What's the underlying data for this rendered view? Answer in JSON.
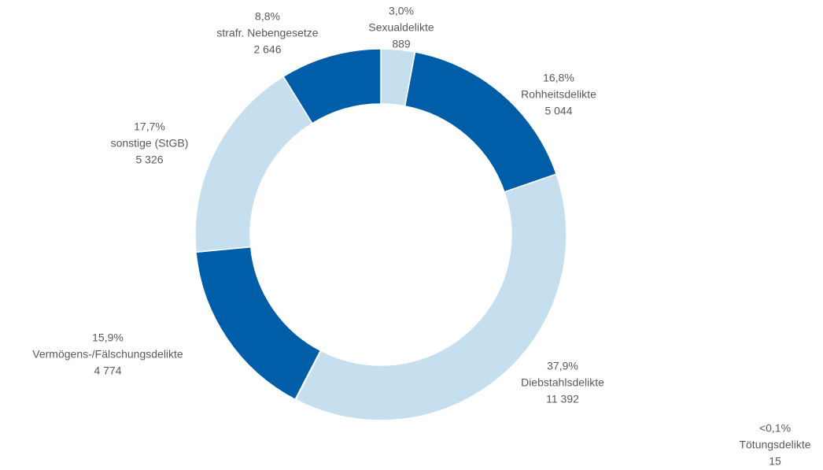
{
  "chart_data": {
    "type": "pie",
    "donut": true,
    "categories": [
      "Sexualdelikte",
      "Rohheitsdelikte",
      "Diebstahlsdelikte",
      "Tötungsdelikte",
      "Vermögens-/Fälschungsdelikte",
      "sonstige (StGB)",
      "strafr. Nebengesetze"
    ],
    "values": [
      889,
      5044,
      11392,
      15,
      4774,
      5326,
      2646
    ],
    "value_labels": [
      "889",
      "5 044",
      "11 392",
      "15",
      "4 774",
      "5 326",
      "2 646"
    ],
    "share_labels": [
      "3,0%",
      "16,8%",
      "37,9%",
      "<0,1%",
      "15,9%",
      "17,7%",
      "8,8%"
    ],
    "colors": [
      "#c6dfee",
      "#005ea8",
      "#c6dfee",
      "#005ea8",
      "#005ea8",
      "#c6dfee",
      "#005ea8"
    ]
  }
}
